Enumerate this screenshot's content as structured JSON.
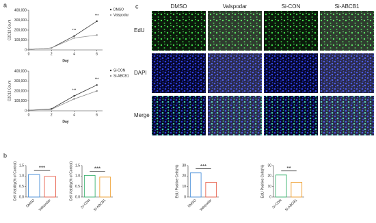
{
  "panel_labels": [
    "a",
    "b",
    "c"
  ],
  "image_grid": {
    "columns": [
      "DMSO",
      "Valspodar",
      "Si-CON",
      "Si-ABCB1"
    ],
    "rows": [
      "EdU",
      "DAPI",
      "Merge"
    ]
  },
  "chart_data": [
    {
      "type": "line",
      "ylabel": "C2C12 Count",
      "xlabel": "Day",
      "x": [
        0,
        2,
        4,
        6
      ],
      "xlim": [
        0,
        6.5
      ],
      "xticks": [
        0,
        2,
        4,
        6
      ],
      "ylim": [
        0,
        400000
      ],
      "yticks": [
        0,
        {
          "value": 100000,
          "label": "100,000"
        },
        {
          "value": 200000,
          "label": "200,000"
        },
        {
          "value": 300000,
          "label": "300,000"
        },
        {
          "value": 400000,
          "label": "400,000"
        }
      ],
      "series": [
        {
          "name": "DMSO",
          "color": "#333333",
          "values": [
            5000,
            20000,
            140000,
            290000
          ]
        },
        {
          "name": "Valspodar",
          "color": "#999999",
          "values": [
            5000,
            20000,
            120000,
            150000
          ]
        }
      ],
      "annotations": [
        {
          "x": 4,
          "text": "***"
        },
        {
          "x": 6,
          "text": "***"
        }
      ]
    },
    {
      "type": "line",
      "ylabel": "C2C12 Count",
      "xlabel": "Day",
      "x": [
        0,
        2,
        4,
        6
      ],
      "xlim": [
        0,
        6.5
      ],
      "xticks": [
        0,
        2,
        4,
        6
      ],
      "ylim": [
        0,
        400000
      ],
      "yticks": [
        0,
        {
          "value": 100000,
          "label": "100,000"
        },
        {
          "value": 200000,
          "label": "200,000"
        },
        {
          "value": 300000,
          "label": "300,000"
        },
        {
          "value": 400000,
          "label": "400,000"
        }
      ],
      "series": [
        {
          "name": "Si-CON",
          "color": "#333333",
          "values": [
            5000,
            20000,
            150000,
            260000
          ]
        },
        {
          "name": "Si-ABCB1",
          "color": "#888888",
          "values": [
            5000,
            15000,
            120000,
            200000
          ]
        }
      ],
      "annotations": [
        {
          "x": 4,
          "text": "***"
        },
        {
          "x": 6,
          "text": "***"
        }
      ]
    },
    {
      "type": "bar",
      "ylabel": "Cell Viability(% of Control)",
      "categories": [
        "DMSO",
        "Valspodar"
      ],
      "values": [
        1.07,
        0.98
      ],
      "colors": [
        "#4a90d9",
        "#e8604c"
      ],
      "ylim": [
        0,
        1.5
      ],
      "yticks": [
        {
          "value": 0,
          "label": "0.0"
        },
        {
          "value": 0.5,
          "label": "0.5"
        },
        {
          "value": 1,
          "label": "1.0"
        },
        {
          "value": 1.5,
          "label": "1.5"
        }
      ],
      "significance": "***"
    },
    {
      "type": "bar",
      "ylabel": "Cell Viability(% of Control)",
      "categories": [
        "Si-CON",
        "Si-ABCB1"
      ],
      "values": [
        1.03,
        0.95
      ],
      "colors": [
        "#3cb371",
        "#f0a030"
      ],
      "ylim": [
        0,
        1.5
      ],
      "yticks": [
        {
          "value": 0,
          "label": "0.0"
        },
        {
          "value": 0.5,
          "label": "0.5"
        },
        {
          "value": 1,
          "label": "1.0"
        },
        {
          "value": 1.5,
          "label": "1.5"
        }
      ],
      "significance": "***"
    },
    {
      "type": "bar",
      "ylabel": "EdU Positive Cells(%)",
      "categories": [
        "DMSO",
        "Valspodar"
      ],
      "values": [
        23,
        14
      ],
      "colors": [
        "#4a90d9",
        "#e8604c"
      ],
      "ylim": [
        0,
        30
      ],
      "yticks": [
        0,
        10,
        20,
        30
      ],
      "significance": "***"
    },
    {
      "type": "bar",
      "ylabel": "EdU Positive Cells(%)",
      "categories": [
        "Si-CON",
        "Si-ABCB1"
      ],
      "values": [
        21,
        14
      ],
      "colors": [
        "#3cb371",
        "#f0a030"
      ],
      "ylim": [
        0,
        30
      ],
      "yticks": [
        0,
        10,
        20,
        30
      ],
      "significance": "**"
    }
  ]
}
